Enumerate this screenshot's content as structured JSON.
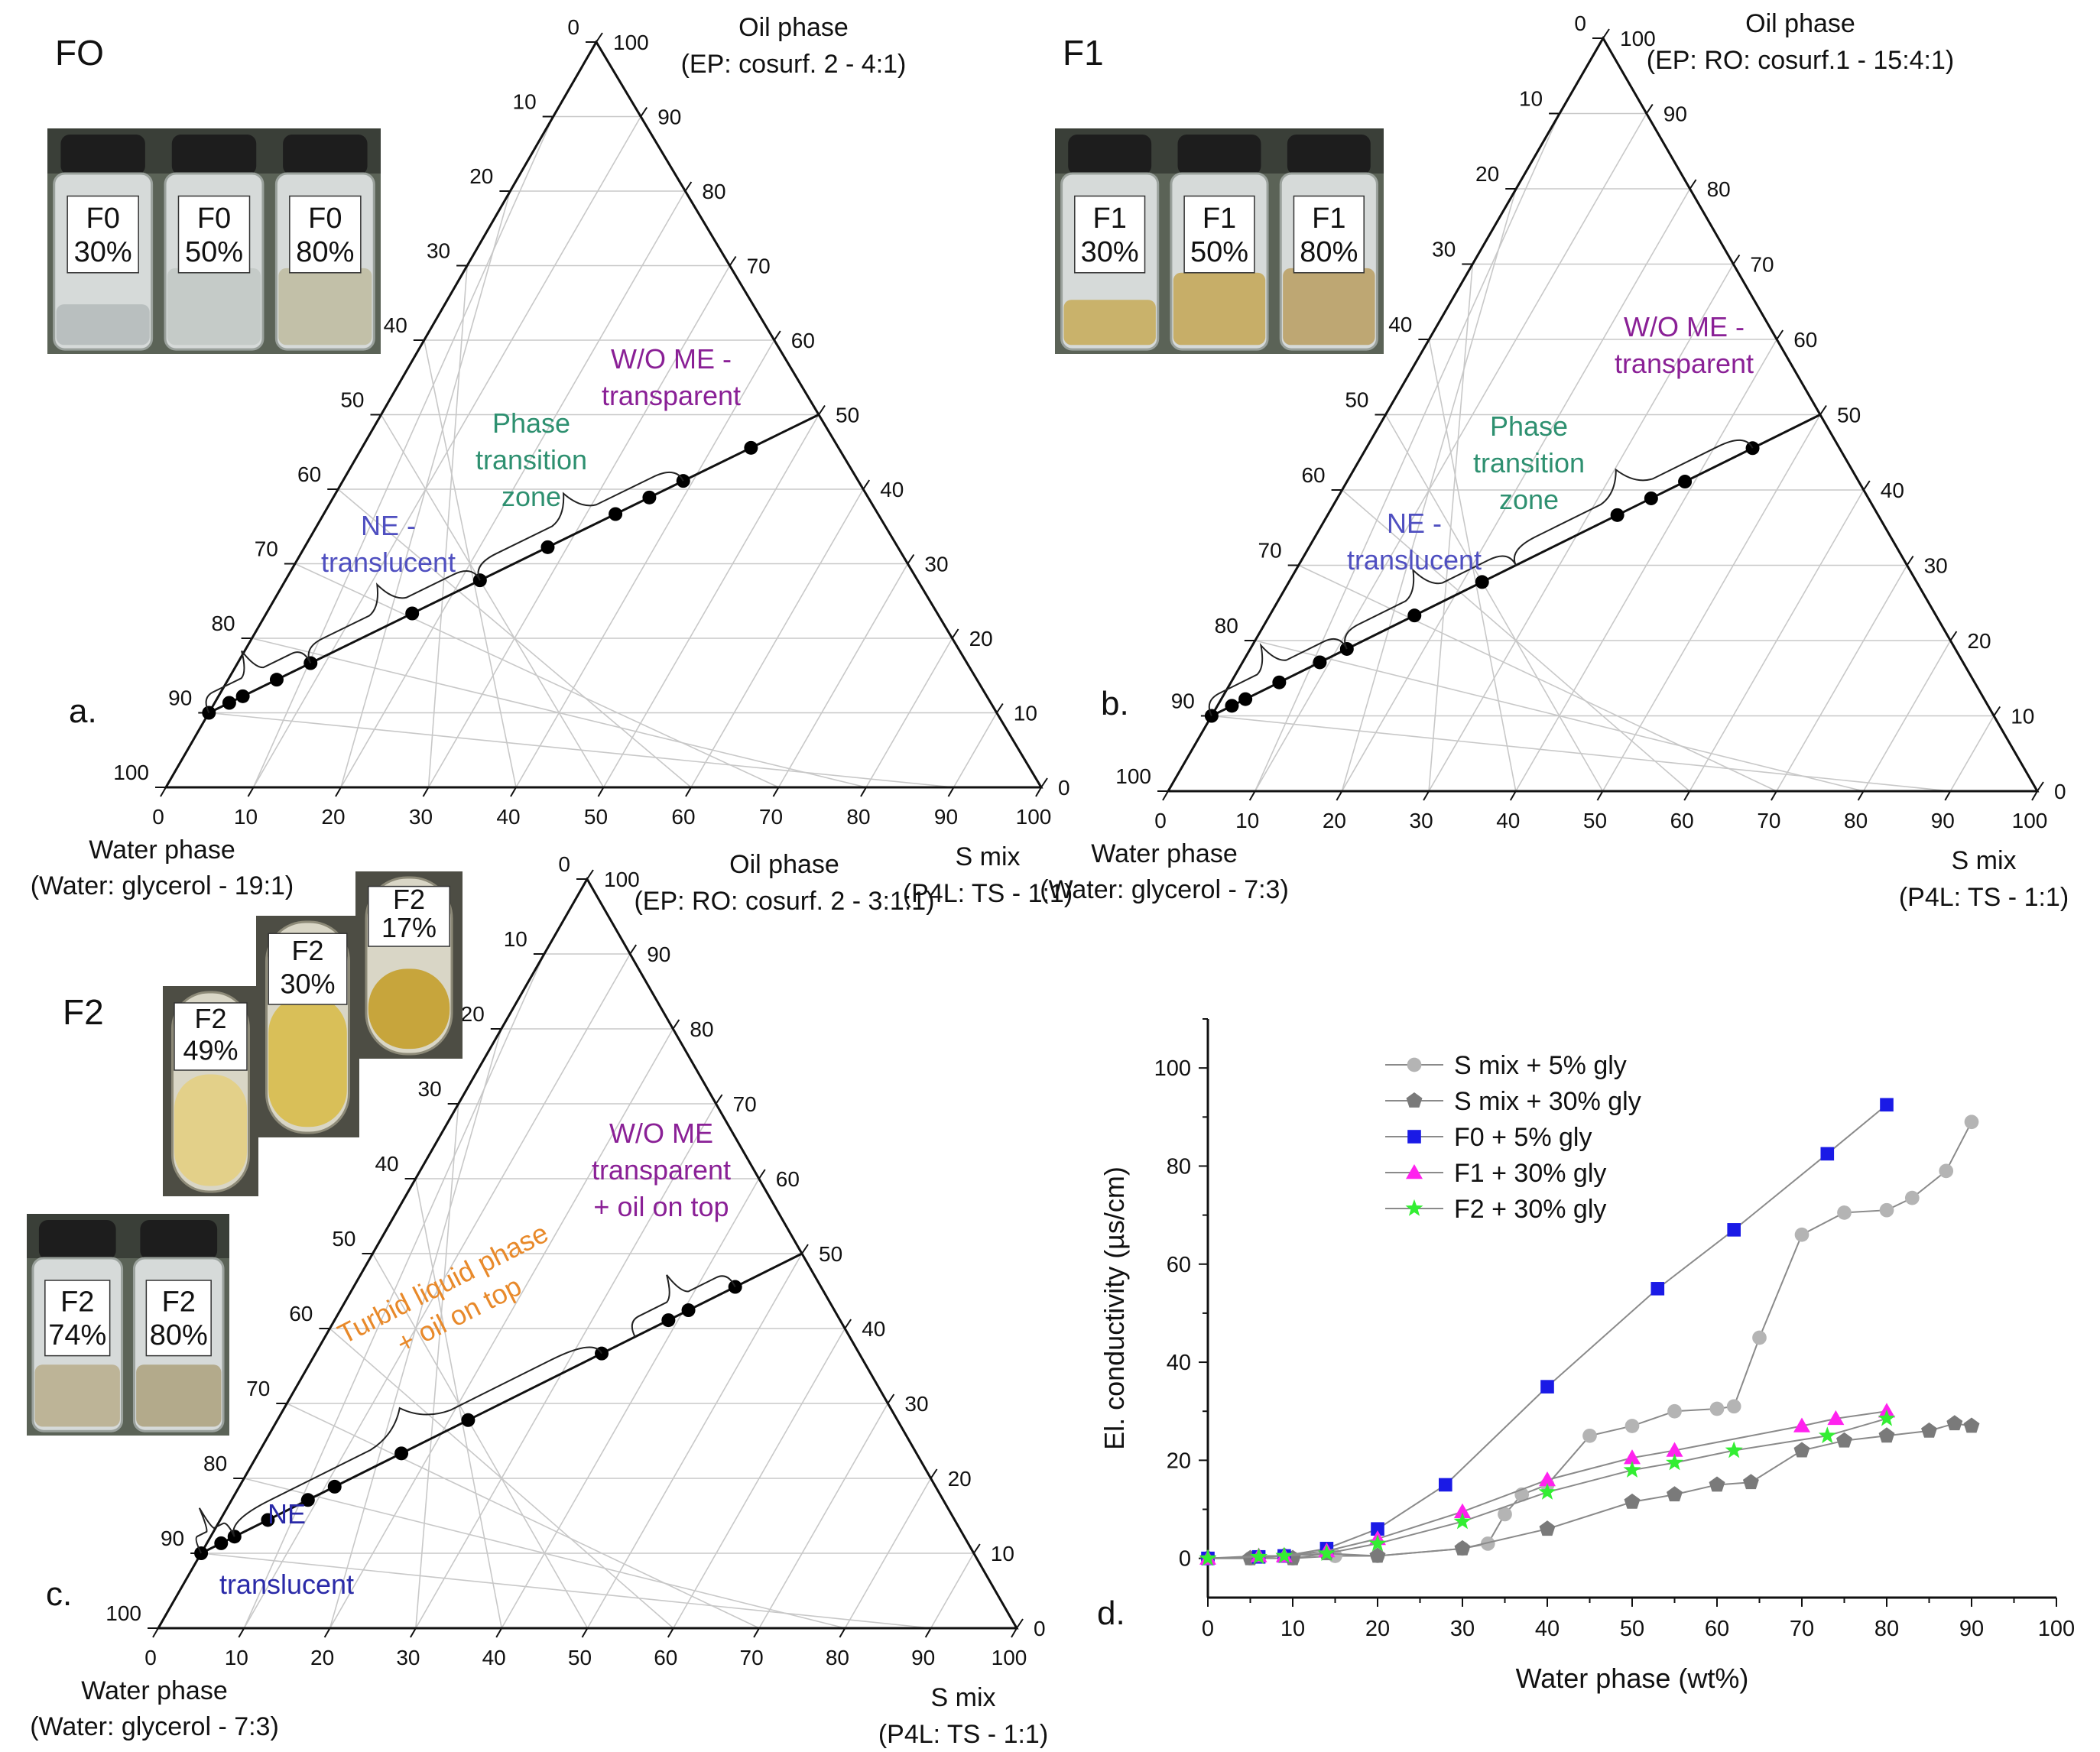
{
  "figure": {
    "panels": [
      {
        "id": "a",
        "panel_label": "a.",
        "title": "FO",
        "oil_label": "Oil phase",
        "oil_comp": "(EP: cosurf. 2 - 4:1)",
        "water_label": "Water phase",
        "water_comp": "(Water: glycerol - 19:1)",
        "smix_label": "S mix",
        "smix_comp": "(P4L: TS - 1:1)",
        "regions": [
          {
            "lines": [
              "NE -",
              "translucent"
            ],
            "color": "#4f4fc0"
          },
          {
            "lines": [
              "Phase",
              "transition",
              "zone"
            ],
            "color": "#2e9070"
          },
          {
            "lines": [
              "W/O ME -",
              "transparent"
            ],
            "color": "#8a2096"
          }
        ],
        "vials": [
          {
            "name": "F0",
            "pct": "30%"
          },
          {
            "name": "F0",
            "pct": "50%"
          },
          {
            "name": "F0",
            "pct": "80%"
          }
        ]
      },
      {
        "id": "b",
        "panel_label": "b.",
        "title": "F1",
        "oil_label": "Oil phase",
        "oil_comp": "(EP: RO: cosurf.1 - 15:4:1)",
        "water_label": "Water phase",
        "water_comp": "(Water: glycerol - 7:3)",
        "smix_label": "S mix",
        "smix_comp": "(P4L: TS - 1:1)",
        "regions": [
          {
            "lines": [
              "NE -",
              "translucent"
            ],
            "color": "#4f4fc0"
          },
          {
            "lines": [
              "Phase",
              "transition",
              "zone"
            ],
            "color": "#2e9070"
          },
          {
            "lines": [
              "W/O ME -",
              "transparent"
            ],
            "color": "#8a2096"
          }
        ],
        "vials": [
          {
            "name": "F1",
            "pct": "30%"
          },
          {
            "name": "F1",
            "pct": "50%"
          },
          {
            "name": "F1",
            "pct": "80%"
          }
        ]
      },
      {
        "id": "c",
        "panel_label": "c.",
        "title": "F2",
        "oil_label": "Oil phase",
        "oil_comp": "(EP: RO: cosurf. 2 - 3:1:1)",
        "water_label": "Water phase",
        "water_comp": "(Water: glycerol - 7:3)",
        "smix_label": "S mix",
        "smix_comp": "(P4L: TS - 1:1)",
        "regions": [
          {
            "lines": [
              "NE",
              "translucent"
            ],
            "color": "#2a2aa8"
          },
          {
            "lines": [
              "Turbid liquid phase",
              "+ oil on top"
            ],
            "color": "#e8892a"
          },
          {
            "lines": [
              "W/O ME",
              "transparent",
              "+ oil on top"
            ],
            "color": "#8a2096"
          }
        ],
        "tubes": [
          {
            "name": "F2",
            "pct": "49%"
          },
          {
            "name": "F2",
            "pct": "30%"
          },
          {
            "name": "F2",
            "pct": "17%"
          }
        ],
        "vials": [
          {
            "name": "F2",
            "pct": "74%"
          },
          {
            "name": "F2",
            "pct": "80%"
          }
        ]
      },
      {
        "id": "d",
        "panel_label": "d."
      }
    ]
  },
  "chart_data": [
    {
      "type": "ternary",
      "panel": "a",
      "axes": [
        "Oil phase",
        "S mix",
        "Water phase"
      ],
      "ticks": [
        0,
        10,
        20,
        30,
        40,
        50,
        60,
        70,
        80,
        90,
        100
      ],
      "dilution_line": {
        "from": {
          "water": 90,
          "oil": 10,
          "smix": 0
        },
        "to": {
          "water": 0,
          "oil": 50,
          "smix": 50
        }
      },
      "points_water_pct": [
        90,
        87,
        85,
        80,
        75,
        60,
        50,
        40,
        30,
        25,
        20,
        10
      ],
      "region_bounds_water_pct": [
        [
          90,
          75
        ],
        [
          75,
          50
        ],
        [
          50,
          20
        ]
      ]
    },
    {
      "type": "ternary",
      "panel": "b",
      "axes": [
        "Oil phase",
        "S mix",
        "Water phase"
      ],
      "ticks": [
        0,
        10,
        20,
        30,
        40,
        50,
        60,
        70,
        80,
        90,
        100
      ],
      "dilution_line": {
        "from": {
          "water": 90,
          "oil": 10,
          "smix": 0
        },
        "to": {
          "water": 0,
          "oil": 50,
          "smix": 50
        }
      },
      "points_water_pct": [
        90,
        87,
        85,
        80,
        74,
        70,
        60,
        50,
        30,
        25,
        20,
        10
      ],
      "region_bounds_water_pct": [
        [
          90,
          70
        ],
        [
          70,
          45
        ],
        [
          45,
          10
        ]
      ]
    },
    {
      "type": "ternary",
      "panel": "c",
      "axes": [
        "Oil phase",
        "S mix",
        "Water phase"
      ],
      "ticks": [
        0,
        10,
        20,
        30,
        40,
        50,
        60,
        70,
        80,
        90,
        100
      ],
      "dilution_line": {
        "from": {
          "water": 90,
          "oil": 10,
          "smix": 0
        },
        "to": {
          "water": 0,
          "oil": 50,
          "smix": 50
        }
      },
      "points_water_pct": [
        90,
        87,
        85,
        80,
        74,
        70,
        60,
        50,
        30,
        20,
        17,
        10
      ],
      "region_bounds_water_pct": [
        [
          90,
          85
        ],
        [
          85,
          30
        ],
        [
          25,
          10
        ]
      ]
    },
    {
      "type": "line",
      "panel": "d",
      "xlabel": "Water phase (wt%)",
      "ylabel": "El. conductivity (µs/cm)",
      "xlim": [
        0,
        100
      ],
      "ylim": [
        -8,
        110
      ],
      "xticks": [
        0,
        10,
        20,
        30,
        40,
        50,
        60,
        70,
        80,
        90,
        100
      ],
      "yticks": [
        0,
        20,
        40,
        60,
        80,
        100
      ],
      "series": [
        {
          "name": "S mix + 5% gly",
          "color": "#b4b4b4",
          "marker": "circle",
          "x": [
            0,
            5,
            10,
            15,
            20,
            30,
            33,
            35,
            37,
            40,
            45,
            50,
            55,
            60,
            62,
            65,
            70,
            75,
            80,
            83,
            87,
            90
          ],
          "y": [
            0,
            0,
            0,
            0.5,
            0.5,
            2,
            3,
            9,
            13,
            15,
            25,
            27,
            30,
            30.5,
            31,
            45,
            66,
            70.5,
            71,
            73.5,
            79,
            89
          ]
        },
        {
          "name": "S mix + 30% gly",
          "color": "#7a7a7a",
          "marker": "pentagon",
          "x": [
            0,
            5,
            9,
            10,
            14,
            20,
            30,
            40,
            50,
            55,
            60,
            64,
            70,
            75,
            80,
            85,
            88,
            90
          ],
          "y": [
            0,
            0,
            0.5,
            0,
            1,
            0.5,
            2,
            6,
            11.5,
            13,
            15,
            15.5,
            22,
            24,
            25,
            26,
            27.5,
            27
          ]
        },
        {
          "name": "F0 + 5% gly",
          "color": "#1a1ae6",
          "marker": "square",
          "x": [
            0,
            6,
            9,
            14,
            20,
            28,
            40,
            53,
            62,
            73,
            80
          ],
          "y": [
            0,
            0.3,
            0.5,
            2,
            6,
            15,
            35,
            55,
            67,
            82.5,
            92.5
          ]
        },
        {
          "name": "F1 + 30% gly",
          "color": "#ff22ee",
          "marker": "triangle",
          "x": [
            0,
            6,
            9,
            14,
            20,
            30,
            40,
            50,
            55,
            70,
            74,
            80
          ],
          "y": [
            0,
            0.5,
            0.5,
            1.5,
            4,
            9.5,
            16,
            20.5,
            22,
            27,
            28.5,
            30
          ]
        },
        {
          "name": "F2 + 30% gly",
          "color": "#33ee33",
          "marker": "star",
          "x": [
            0,
            6,
            9,
            14,
            20,
            30,
            40,
            50,
            55,
            62,
            73,
            80
          ],
          "y": [
            0,
            0.3,
            0.5,
            1,
            3,
            7.5,
            13.5,
            18,
            19.5,
            22,
            25,
            28.5
          ]
        }
      ]
    }
  ]
}
